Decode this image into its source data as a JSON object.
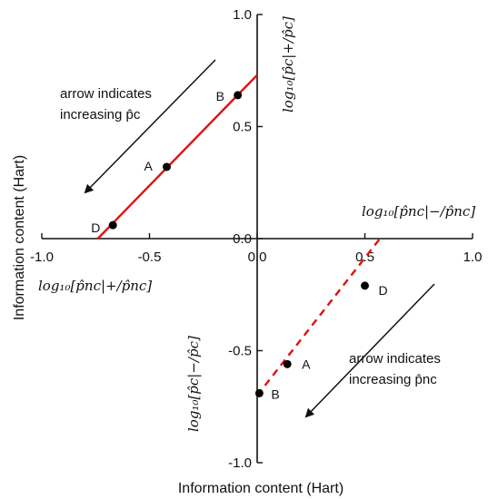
{
  "chart_data": {
    "type": "line",
    "xlabel": "Information content (Hart)",
    "ylabel": "Information content (Hart)",
    "xlim": [
      -1.0,
      1.0
    ],
    "ylim": [
      -1.0,
      1.0
    ],
    "x_ticks": [
      "-1.0",
      "-0.5",
      "0.0",
      "0.5",
      "1.0"
    ],
    "y_ticks": [
      "1.0",
      "0.5",
      "0.0",
      "-0.5",
      "-1.0"
    ],
    "grid": false,
    "quadrant_labels": {
      "pos_y": "log₁₀[p̂c|+/p̂c]",
      "neg_y": "log₁₀[p̂c|−/p̂c]",
      "pos_x": "log₁₀[p̂nc|−/p̂nc]",
      "neg_x": "log₁₀[p̂nc|+/p̂nc]"
    },
    "series": [
      {
        "style": "solid",
        "color": "#e01010",
        "x": [
          -0.74,
          0.0
        ],
        "y": [
          0.0,
          0.73
        ],
        "points": [
          {
            "label": "B",
            "x": -0.09,
            "y": 0.64
          },
          {
            "label": "A",
            "x": -0.42,
            "y": 0.32
          },
          {
            "label": "D",
            "x": -0.67,
            "y": 0.06
          }
        ]
      },
      {
        "style": "dashed",
        "color": "#e01010",
        "x": [
          0.0,
          0.57
        ],
        "y": [
          -0.7,
          0.0
        ],
        "points": [
          {
            "label": "D",
            "x": 0.5,
            "y": -0.21
          },
          {
            "label": "A",
            "x": 0.14,
            "y": -0.56
          },
          {
            "label": "B",
            "x": 0.01,
            "y": -0.69
          }
        ]
      }
    ],
    "annotations": [
      {
        "text_lines": [
          "arrow indicates",
          "increasing p̂c"
        ],
        "arrow_direction": "down-left"
      },
      {
        "text_lines": [
          "arrow indicates",
          "increasing p̂nc"
        ],
        "arrow_direction": "down-left"
      }
    ]
  }
}
